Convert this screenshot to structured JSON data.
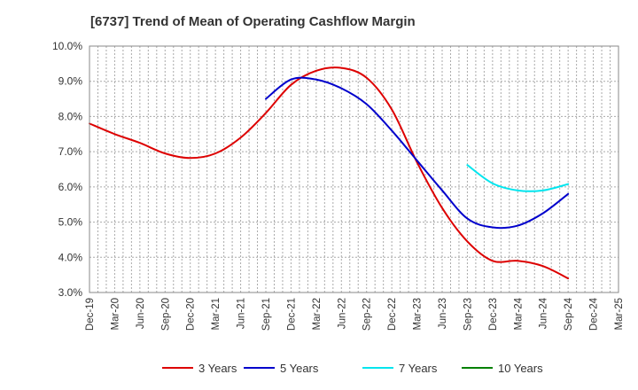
{
  "chart_data": {
    "type": "line",
    "title": "[6737]  Trend of Mean of Operating Cashflow Margin",
    "xlabel": "",
    "ylabel": "",
    "ylim": [
      3.0,
      10.0
    ],
    "y_unit": "%",
    "y_ticks": [
      "3.0%",
      "4.0%",
      "5.0%",
      "6.0%",
      "7.0%",
      "8.0%",
      "9.0%",
      "10.0%"
    ],
    "y_tick_values": [
      3,
      4,
      5,
      6,
      7,
      8,
      9,
      10
    ],
    "x_ticks": [
      "Dec-19",
      "Mar-20",
      "Jun-20",
      "Sep-20",
      "Dec-20",
      "Mar-21",
      "Jun-21",
      "Sep-21",
      "Dec-21",
      "Mar-22",
      "Jun-22",
      "Sep-22",
      "Dec-22",
      "Mar-23",
      "Jun-23",
      "Sep-23",
      "Dec-23",
      "Mar-24",
      "Jun-24",
      "Sep-24",
      "Dec-24",
      "Mar-25"
    ],
    "grid": true,
    "legend_position": "bottom",
    "series": [
      {
        "name": "3 Years",
        "color": "#dd0000",
        "values": [
          7.8,
          7.5,
          7.25,
          6.95,
          6.82,
          6.95,
          7.4,
          8.1,
          8.9,
          9.3,
          9.38,
          9.1,
          8.2,
          6.7,
          5.4,
          4.45,
          3.9,
          3.9,
          3.75,
          3.4,
          null,
          null
        ]
      },
      {
        "name": "5 Years",
        "color": "#0000cc",
        "values": [
          null,
          null,
          null,
          null,
          null,
          null,
          null,
          8.5,
          9.05,
          9.05,
          8.8,
          8.35,
          7.6,
          6.75,
          5.9,
          5.1,
          4.85,
          4.9,
          5.25,
          5.8,
          null,
          null
        ]
      },
      {
        "name": "7 Years",
        "color": "#00e5ee",
        "values": [
          null,
          null,
          null,
          null,
          null,
          null,
          null,
          null,
          null,
          null,
          null,
          null,
          null,
          null,
          null,
          6.62,
          6.1,
          5.9,
          5.9,
          6.08,
          null,
          null
        ]
      },
      {
        "name": "10 Years",
        "color": "#008000",
        "values": [
          null,
          null,
          null,
          null,
          null,
          null,
          null,
          null,
          null,
          null,
          null,
          null,
          null,
          null,
          null,
          null,
          null,
          null,
          null,
          null,
          null,
          null
        ]
      }
    ]
  }
}
